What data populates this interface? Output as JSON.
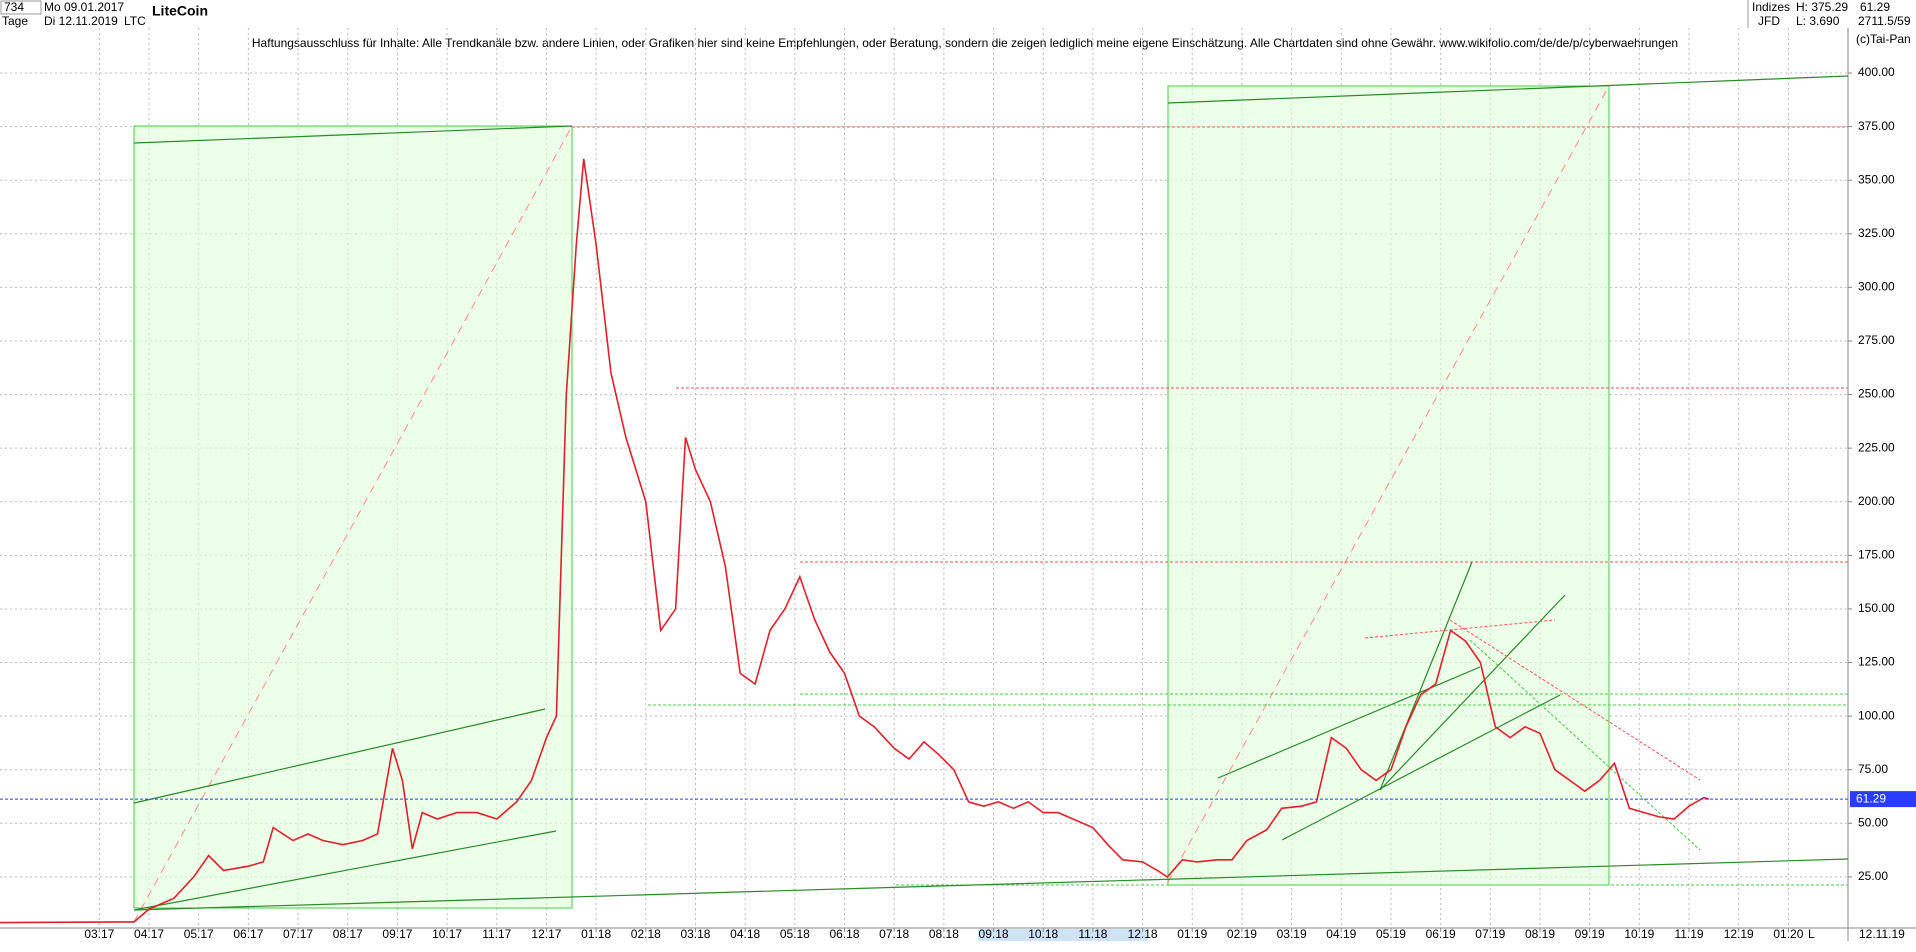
{
  "header": {
    "count": "734",
    "start_date": "Mo 09.01.2017",
    "period": "Tage",
    "end_date": "Di 12.11.2019",
    "name": "LiteCoin",
    "symbol": "LTC",
    "disclaimer": "Haftungsausschluss für Inhalte: Alle Trendkanäle bzw. andere Linien, oder Grafiken hier sind keine Empfehlungen, oder Beratung, sondern die zeigen lediglich meine eigene Einschätzung. Alle Chartdaten sind ohne Gewähr.  www.wikifolio.com/de/de/p/cyberwaehrungen",
    "group": "Indizes",
    "source": "JFD",
    "high": "H: 375.29",
    "low": "L: 3.690",
    "last": "61.29",
    "info": "2711.5/59",
    "copyright": "(c)Tai-Pan",
    "date_label": "12.11.19",
    "scale_mode": "L"
  },
  "chart_data": {
    "type": "line",
    "color": "#e0202a",
    "grid": true,
    "last_value": 61.29,
    "x": [
      0,
      2.7,
      3.0,
      3.5,
      3.9,
      4.2,
      4.5,
      5.0,
      5.3,
      5.5,
      5.9,
      6.2,
      6.5,
      6.9,
      7.3,
      7.6,
      7.9,
      8.1,
      8.3,
      8.5,
      8.8,
      9.2,
      9.6,
      10.0,
      10.4,
      10.7,
      11.0,
      11.2,
      11.4,
      11.6,
      11.75,
      12.0,
      12.3,
      12.6,
      13.0,
      13.3,
      13.6,
      13.8,
      14.0,
      14.3,
      14.6,
      14.9,
      15.2,
      15.5,
      15.8,
      16.1,
      16.4,
      16.7,
      17.0,
      17.3,
      17.6,
      18.0,
      18.3,
      18.6,
      18.9,
      19.2,
      19.5,
      19.8,
      20.1,
      20.4,
      20.7,
      21.0,
      21.3,
      21.6,
      22.0,
      22.3,
      22.6,
      23.0,
      23.3,
      23.5,
      23.8,
      24.1,
      24.5,
      24.8,
      25.1,
      25.5,
      25.8,
      26.2,
      26.5,
      26.8,
      27.1,
      27.4,
      27.7,
      28.0,
      28.3,
      28.6,
      28.9,
      29.2,
      29.5,
      29.8,
      30.1,
      30.4,
      30.7,
      31.0,
      31.3,
      31.6,
      31.9,
      32.2,
      32.5,
      32.8,
      33.1,
      33.4,
      33.7,
      34.0,
      34.3,
      34.4
    ],
    "values": [
      3.7,
      4,
      10,
      15,
      25,
      35,
      28,
      30,
      32,
      48,
      42,
      45,
      42,
      40,
      42,
      45,
      85,
      70,
      38,
      55,
      52,
      55,
      55,
      52,
      60,
      70,
      90,
      100,
      250,
      320,
      360,
      320,
      260,
      230,
      200,
      140,
      150,
      230,
      215,
      200,
      170,
      120,
      115,
      140,
      150,
      165,
      145,
      130,
      120,
      100,
      95,
      85,
      80,
      88,
      82,
      75,
      60,
      58,
      60,
      57,
      60,
      55,
      55,
      52,
      48,
      40,
      33,
      32,
      28,
      25,
      33,
      32,
      33,
      33,
      42,
      47,
      57,
      58,
      60,
      90,
      85,
      75,
      70,
      75,
      95,
      110,
      115,
      140,
      135,
      125,
      95,
      90,
      95,
      92,
      75,
      70,
      65,
      70,
      78,
      57,
      55,
      53,
      52,
      58,
      62,
      61.29
    ],
    "xlim": [
      0,
      37.2
    ],
    "xticks": [
      {
        "value": 2,
        "label": "03.17"
      },
      {
        "value": 3,
        "label": "04.17"
      },
      {
        "value": 4,
        "label": "05.17"
      },
      {
        "value": 5,
        "label": "06.17"
      },
      {
        "value": 6,
        "label": "07.17"
      },
      {
        "value": 7,
        "label": "08.17"
      },
      {
        "value": 8,
        "label": "09.17"
      },
      {
        "value": 9,
        "label": "10.17"
      },
      {
        "value": 10,
        "label": "11.17"
      },
      {
        "value": 11,
        "label": "12.17"
      },
      {
        "value": 12,
        "label": "01.18"
      },
      {
        "value": 13,
        "label": "02.18"
      },
      {
        "value": 14,
        "label": "03.18"
      },
      {
        "value": 15,
        "label": "04.18"
      },
      {
        "value": 16,
        "label": "05.18"
      },
      {
        "value": 17,
        "label": "06.18"
      },
      {
        "value": 18,
        "label": "07.18"
      },
      {
        "value": 19,
        "label": "08.18"
      },
      {
        "value": 20,
        "label": "09.18"
      },
      {
        "value": 21,
        "label": "10.18"
      },
      {
        "value": 22,
        "label": "11.18"
      },
      {
        "value": 23,
        "label": "12.18"
      },
      {
        "value": 24,
        "label": "01.19"
      },
      {
        "value": 25,
        "label": "02.19"
      },
      {
        "value": 26,
        "label": "03.19"
      },
      {
        "value": 27,
        "label": "04.19"
      },
      {
        "value": 28,
        "label": "05.19"
      },
      {
        "value": 29,
        "label": "06.19"
      },
      {
        "value": 30,
        "label": "07.19"
      },
      {
        "value": 31,
        "label": "08.19"
      },
      {
        "value": 32,
        "label": "09.19"
      },
      {
        "value": 33,
        "label": "10.19"
      },
      {
        "value": 34,
        "label": "11.19"
      },
      {
        "value": 35,
        "label": "12.19"
      },
      {
        "value": 36,
        "label": "01.20"
      }
    ],
    "ylim": [
      -4.9,
      421
    ],
    "yticks": [
      {
        "value": 25,
        "label": "25.00"
      },
      {
        "value": 50,
        "label": "50.00"
      },
      {
        "value": 75,
        "label": "75.00"
      },
      {
        "value": 100,
        "label": "100.00"
      },
      {
        "value": 125,
        "label": "125.00"
      },
      {
        "value": 150,
        "label": "150.00"
      },
      {
        "value": 175,
        "label": "175.00"
      },
      {
        "value": 200,
        "label": "200.00"
      },
      {
        "value": 225,
        "label": "225.00"
      },
      {
        "value": 250,
        "label": "250.00"
      },
      {
        "value": 275,
        "label": "275.00"
      },
      {
        "value": 300,
        "label": "300.00"
      },
      {
        "value": 325,
        "label": "325.00"
      },
      {
        "value": 350,
        "label": "350.00"
      },
      {
        "value": 375,
        "label": "375.00"
      },
      {
        "value": 400,
        "label": "400.00"
      }
    ]
  }
}
